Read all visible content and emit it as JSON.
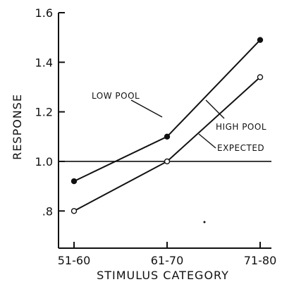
{
  "chart_data": {
    "type": "line",
    "xlabel": "STIMULUS CATEGORY",
    "ylabel": "RESPONSE",
    "categories": [
      "51-60",
      "61-70",
      "71-80"
    ],
    "ylim": [
      0.65,
      1.6
    ],
    "yticks": [
      0.8,
      1.0,
      1.2,
      1.4,
      1.6
    ],
    "ytick_labels": [
      ".8",
      "1.0",
      "1.2",
      "1.4",
      "1.6"
    ],
    "grid": false,
    "series": [
      {
        "name": "LOW POOL",
        "values": [
          0.92,
          1.1,
          1.49
        ],
        "marker": "filled"
      },
      {
        "name": "HIGH POOL",
        "values": [
          0.8,
          1.0,
          1.34
        ],
        "marker": "open"
      }
    ],
    "reference_line": {
      "label": "EXPECTED",
      "value": 1.0
    }
  }
}
